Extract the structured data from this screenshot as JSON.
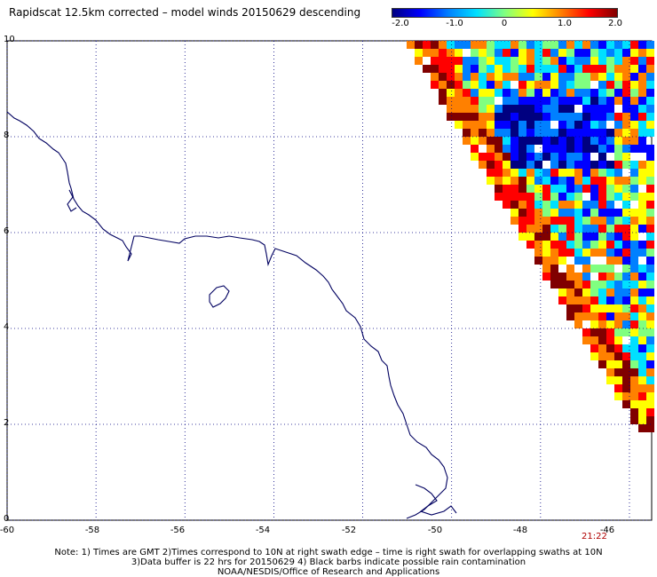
{
  "title": "Rapidscat 12.5km corrected – model winds 20150629 descending",
  "colorbar": {
    "labels": [
      "-2.0",
      "-1.0",
      "0",
      "1.0",
      "2.0"
    ],
    "label_values": [
      -2.0,
      -1.0,
      0,
      1.0,
      2.0
    ],
    "range": [
      -2.0,
      2.0
    ],
    "colors": [
      "#000080",
      "#0000ff",
      "#0080ff",
      "#00e0ff",
      "#80ff80",
      "#ffff00",
      "#ff8000",
      "#ff0000",
      "#800000"
    ]
  },
  "map": {
    "lon_range": [
      -60,
      -45.5
    ],
    "lat_range": [
      0,
      10
    ],
    "x_ticks": [
      "-60",
      "-58",
      "-56",
      "-54",
      "-52",
      "-50",
      "-48",
      "-46"
    ],
    "x_tick_values": [
      -60,
      -58,
      -56,
      -54,
      -52,
      -50,
      -48,
      -46
    ],
    "y_ticks": [
      "10",
      "8",
      "6",
      "4",
      "2",
      "0"
    ],
    "y_tick_values": [
      10,
      8,
      6,
      4,
      2,
      0
    ],
    "grid": "dotted",
    "coast_color": "#000060",
    "swath": "satellite swath pixels in the upper right, bounded by a diagonal edge"
  },
  "swath_time": "21:22",
  "notes": [
    "Note: 1) Times are GMT 2)Times correspond to 10N at right swath edge – time is right swath for overlapping swaths at 10N",
    "3)Data buffer is 22 hrs for 20150629 4) Black barbs indicate possible rain contamination",
    "NOAA/NESDIS/Office of Research and Applications"
  ]
}
